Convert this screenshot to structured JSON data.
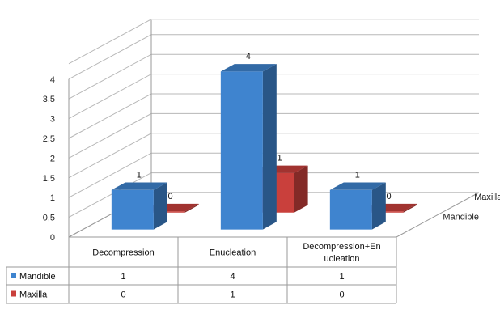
{
  "chart_data": {
    "type": "bar",
    "categories": [
      "Decompression",
      "Enucleation",
      "Decompression+En ucleation"
    ],
    "category_lines": [
      [
        "Decompression"
      ],
      [
        "Enucleation"
      ],
      [
        "Decompression+En",
        "ucleation"
      ]
    ],
    "series": [
      {
        "name": "Mandible",
        "values": [
          1,
          4,
          1
        ],
        "color": "#3f84cf"
      },
      {
        "name": "Maxilla",
        "values": [
          0,
          1,
          0
        ],
        "color": "#c9403c"
      }
    ],
    "yticks": [
      "0",
      "0,5",
      "1",
      "1,5",
      "2",
      "2,5",
      "3",
      "3,5",
      "4"
    ],
    "ylim": [
      0,
      4
    ],
    "grid": true,
    "legend": "data-table"
  }
}
